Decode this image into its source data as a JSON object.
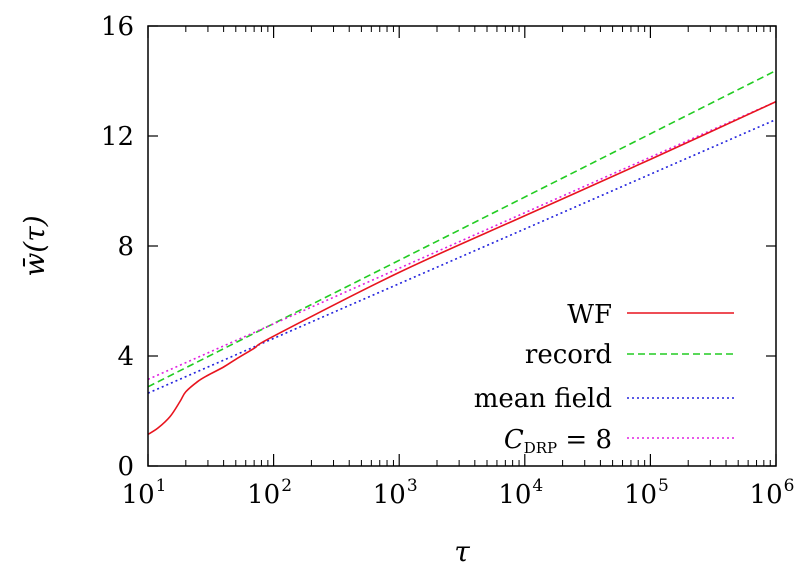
{
  "chart_data": {
    "type": "line",
    "xlabel": "τ",
    "ylabel": "w̄(τ)",
    "xscale": "log",
    "xlim": [
      10,
      1000000
    ],
    "ylim": [
      0,
      16
    ],
    "x_ticks": [
      {
        "value": 10,
        "base": "10",
        "exp": "1"
      },
      {
        "value": 100,
        "base": "10",
        "exp": "2"
      },
      {
        "value": 1000,
        "base": "10",
        "exp": "3"
      },
      {
        "value": 10000,
        "base": "10",
        "exp": "4"
      },
      {
        "value": 100000,
        "base": "10",
        "exp": "5"
      },
      {
        "value": 1000000,
        "base": "10",
        "exp": "6"
      }
    ],
    "y_ticks": [
      {
        "value": 0,
        "label": "0"
      },
      {
        "value": 4,
        "label": "4"
      },
      {
        "value": 8,
        "label": "8"
      },
      {
        "value": 12,
        "label": "12"
      },
      {
        "value": 16,
        "label": "16"
      }
    ],
    "legend_position": "bottom-right",
    "series": [
      {
        "name": "WF",
        "color": "#e8141e",
        "dash": "solid",
        "x": [
          10,
          12,
          15,
          18,
          20,
          25,
          30,
          40,
          50,
          70,
          100,
          1000,
          10000,
          100000,
          1000000
        ],
        "y": [
          1.15,
          1.38,
          1.8,
          2.35,
          2.7,
          3.08,
          3.3,
          3.6,
          3.88,
          4.28,
          4.72,
          7.04,
          9.1,
          11.15,
          13.25
        ]
      },
      {
        "name": "record",
        "color": "#22cc22",
        "dash": "dashed",
        "x": [
          10,
          1000000
        ],
        "y": [
          2.88,
          14.38
        ]
      },
      {
        "name": "mean field",
        "color": "#2222dd",
        "dash": "dotted",
        "x": [
          10,
          1000000
        ],
        "y": [
          2.65,
          12.6
        ]
      },
      {
        "name_main": "C",
        "name_sub": "DRP",
        "name_suffix": " = 8",
        "color": "#e020e0",
        "dash": "dotted",
        "x": [
          10,
          1000000
        ],
        "y": [
          3.15,
          13.25
        ]
      }
    ]
  }
}
